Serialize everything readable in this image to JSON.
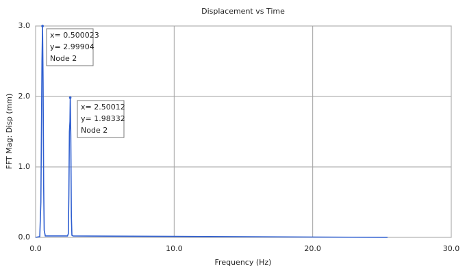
{
  "chart_data": {
    "type": "line",
    "title": "Displacement vs Time",
    "x_label": "Frequency (Hz)",
    "y_label": "FFT Mag: Disp  (mm)",
    "x": [
      0,
      0.3,
      0.38,
      0.42,
      0.46,
      0.5,
      0.54,
      0.58,
      0.62,
      0.7,
      2.3,
      2.36,
      2.4,
      2.44,
      2.48,
      2.5,
      2.54,
      2.58,
      2.62,
      2.7,
      25.4
    ],
    "series": [
      {
        "name": "Node 2",
        "color": "#2f5fd0",
        "values": [
          0,
          0.01,
          0.5,
          1.5,
          2.5,
          3.0,
          2.2,
          0.75,
          0.1,
          0.02,
          0.02,
          0.05,
          0.6,
          1.5,
          1.65,
          1.98,
          1.45,
          0.3,
          0.03,
          0.02,
          0
        ]
      }
    ],
    "xlim": [
      0,
      30
    ],
    "ylim": [
      0,
      3
    ],
    "xticks": [
      {
        "value": 0,
        "label": "0.0"
      },
      {
        "value": 10,
        "label": "10.0"
      },
      {
        "value": 20,
        "label": "20.0"
      },
      {
        "value": 30,
        "label": "30.0"
      }
    ],
    "yticks": [
      {
        "value": 0,
        "label": "0.0"
      },
      {
        "value": 1,
        "label": "1.0"
      },
      {
        "value": 2,
        "label": "2.0"
      },
      {
        "value": 3,
        "label": "3.0"
      }
    ],
    "grid": true,
    "annotations": [
      {
        "x": 0.500023,
        "y": 2.99904,
        "lines": [
          "x= 0.500023",
          "y= 2.99904",
          "Node 2"
        ]
      },
      {
        "x": 2.50012,
        "y": 1.98332,
        "lines": [
          "x= 2.50012",
          "y= 1.98332",
          "Node 2"
        ]
      }
    ]
  }
}
